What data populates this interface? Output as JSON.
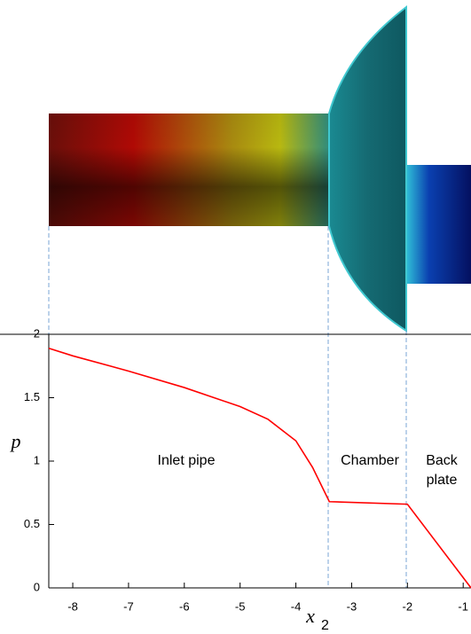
{
  "chart_data": {
    "type": "line",
    "y_label": "p",
    "x_label": "x",
    "x_label_subscript": "2",
    "annotations": [
      "Inlet pipe",
      "Chamber",
      "Back",
      "plate"
    ],
    "x": [
      -8.43,
      -8,
      -7,
      -6,
      -5,
      -4.5,
      -4,
      -3.7,
      -3.4,
      -2,
      -0.86
    ],
    "series": [
      {
        "color": "#ff0000",
        "values": [
          1.89,
          1.83,
          1.71,
          1.58,
          1.43,
          1.33,
          1.16,
          0.95,
          0.68,
          0.66,
          0
        ]
      }
    ],
    "xlim": [
      -8.43,
      -0.86
    ],
    "ylim": [
      0,
      2
    ],
    "xticks": [
      -8,
      -7,
      -6,
      -5,
      -4,
      -3,
      -2,
      -1
    ],
    "yticks": [
      0,
      0.5,
      1,
      1.5,
      2
    ]
  }
}
